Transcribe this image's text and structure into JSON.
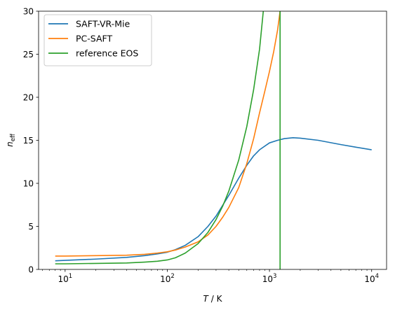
{
  "chart_data": {
    "type": "line",
    "xscale": "log",
    "xlim": [
      5.5,
      14000
    ],
    "ylim": [
      0,
      30
    ],
    "xlabel": {
      "italic": "T",
      "rest": " / K"
    },
    "ylabel": {
      "italic": "n",
      "sub": "eff"
    },
    "x_ticks": [
      {
        "value": 10,
        "base": "10",
        "exp": "1"
      },
      {
        "value": 100,
        "base": "10",
        "exp": "2"
      },
      {
        "value": 1000,
        "base": "10",
        "exp": "3"
      },
      {
        "value": 10000,
        "base": "10",
        "exp": "4"
      }
    ],
    "y_ticks": [
      0,
      5,
      10,
      15,
      20,
      25,
      30
    ],
    "legend_position": "top-left",
    "series": [
      {
        "name": "SAFT-VR-Mie",
        "color": "#1f77b4",
        "x": [
          8,
          10,
          20,
          40,
          60,
          80,
          100,
          120,
          150,
          200,
          250,
          300,
          400,
          500,
          600,
          700,
          800,
          1000,
          1200,
          1400,
          1700,
          2000,
          3000,
          5000,
          7000,
          10000
        ],
        "y": [
          1.0,
          1.05,
          1.2,
          1.4,
          1.6,
          1.8,
          2.0,
          2.3,
          2.8,
          3.8,
          5.0,
          6.2,
          8.6,
          10.6,
          12.1,
          13.2,
          13.9,
          14.7,
          15.0,
          15.2,
          15.3,
          15.25,
          15.0,
          14.5,
          14.2,
          13.9
        ]
      },
      {
        "name": "PC-SAFT",
        "color": "#ff7f0e",
        "x": [
          8,
          10,
          20,
          40,
          60,
          80,
          100,
          120,
          150,
          200,
          250,
          300,
          350,
          400,
          500,
          600,
          700,
          800,
          900,
          1000,
          1100,
          1200,
          1270
        ],
        "y": [
          1.55,
          1.55,
          1.6,
          1.65,
          1.75,
          1.9,
          2.05,
          2.25,
          2.6,
          3.2,
          4.0,
          5.0,
          6.1,
          7.2,
          9.5,
          12.3,
          15.2,
          18.2,
          20.7,
          23.0,
          25.3,
          27.8,
          30.0
        ]
      },
      {
        "name": "reference EOS",
        "color": "#2ca02c",
        "x": [
          8,
          10,
          20,
          40,
          60,
          80,
          100,
          120,
          150,
          200,
          250,
          300,
          350,
          400,
          500,
          600,
          700,
          800,
          870
        ],
        "y": [
          0.65,
          0.65,
          0.7,
          0.75,
          0.85,
          0.95,
          1.1,
          1.35,
          1.9,
          3.0,
          4.3,
          5.8,
          7.4,
          9.1,
          12.7,
          16.6,
          20.9,
          25.6,
          30.0
        ]
      },
      {
        "name": "",
        "color": "#2ca02c",
        "x": [
          1270,
          1270
        ],
        "y": [
          0,
          30
        ]
      }
    ]
  }
}
